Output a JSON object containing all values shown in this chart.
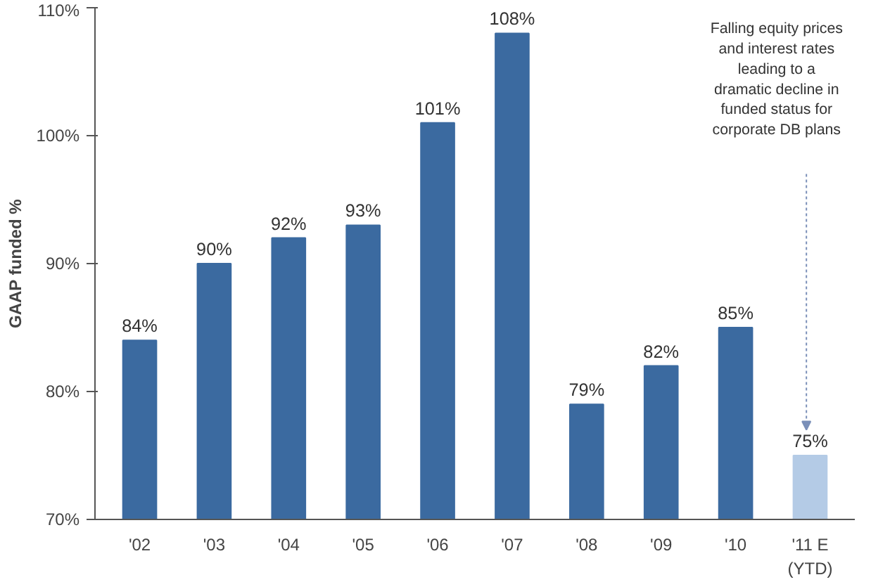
{
  "chart_data": {
    "type": "bar",
    "ylabel": "GAAP funded %",
    "categories": [
      "'02",
      "'03",
      "'04",
      "'05",
      "'06",
      "'07",
      "'08",
      "'09",
      "'10",
      "'11 E\n(YTD)"
    ],
    "values": [
      84,
      90,
      92,
      93,
      101,
      108,
      79,
      82,
      85,
      75
    ],
    "colors": [
      "#3b6aa0",
      "#3b6aa0",
      "#3b6aa0",
      "#3b6aa0",
      "#3b6aa0",
      "#3b6aa0",
      "#3b6aa0",
      "#3b6aa0",
      "#3b6aa0",
      "#b4cbe6"
    ],
    "value_labels": [
      "84%",
      "90%",
      "92%",
      "93%",
      "101%",
      "108%",
      "79%",
      "82%",
      "85%",
      "75%"
    ],
    "ylim": [
      70,
      110
    ],
    "yticks": [
      {
        "value": 70,
        "label": "70%"
      },
      {
        "value": 80,
        "label": "80%"
      },
      {
        "value": 90,
        "label": "90%"
      },
      {
        "value": 100,
        "label": "100%"
      },
      {
        "value": 110,
        "label": "110%"
      }
    ],
    "grid": false,
    "annotations": [
      "Falling equity prices\nand interest rates\nleading to a\ndramatic decline in\nfunded status for\ncorporate DB plans"
    ]
  }
}
